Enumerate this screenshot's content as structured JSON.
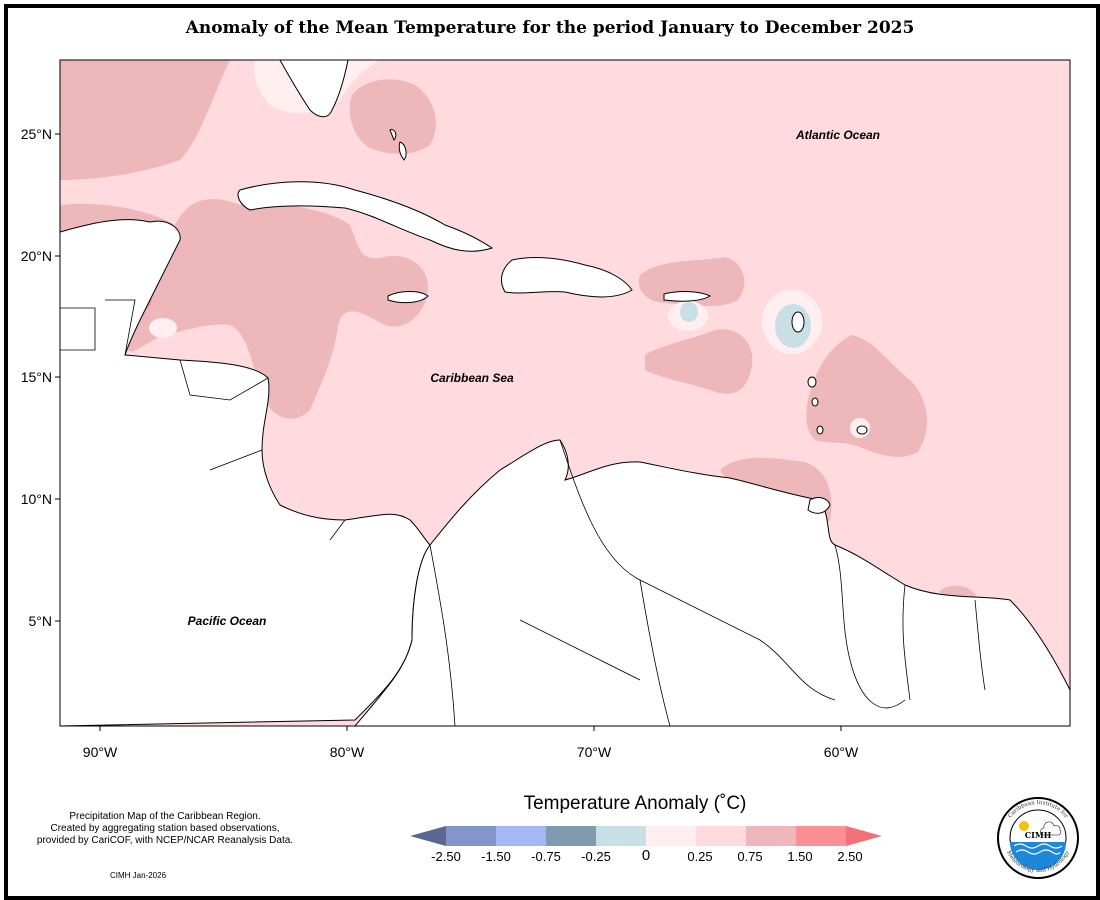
{
  "title": "Anomaly of the Mean Temperature for the period January to December 2025",
  "map": {
    "latitude_labels": [
      "25°N",
      "20°N",
      "15°N",
      "10°N",
      "5°N"
    ],
    "longitude_labels": [
      "90°W",
      "80°W",
      "70°W",
      "60°W"
    ],
    "ocean_labels": {
      "atlantic": "Atlantic Ocean",
      "caribbean": "Caribbean Sea",
      "pacific": "Pacific Ocean"
    },
    "dominant_anomaly_class": "0.25 to 0.75"
  },
  "legend": {
    "title": "Temperature Anomaly (˚C)",
    "ticks": [
      "-2.50",
      "-1.50",
      "-0.75",
      "-0.25",
      "0",
      "0.25",
      "0.75",
      "1.50",
      "2.50"
    ],
    "colors": [
      "#5a6890",
      "#8494cc",
      "#a4b8f4",
      "#7f9bb0",
      "#c9dfe6",
      "#ffeff1",
      "#ffdbe0",
      "#eeb8bb",
      "#fb8f93",
      "#f4717a"
    ]
  },
  "caption": {
    "line1": "Precipitation Map of the Caribbean Region.",
    "line2": "Created by aggregating station based observations,",
    "line3": "provided by CariCOF, with NCEP/NCAR Reanalysis Data."
  },
  "credit": "CIMH Jan-2026",
  "logo": {
    "ring_text_top": "Caribbean Institute for",
    "ring_text_bottom": "Meteorology and Hydrology",
    "center_text": "CIMH"
  }
}
